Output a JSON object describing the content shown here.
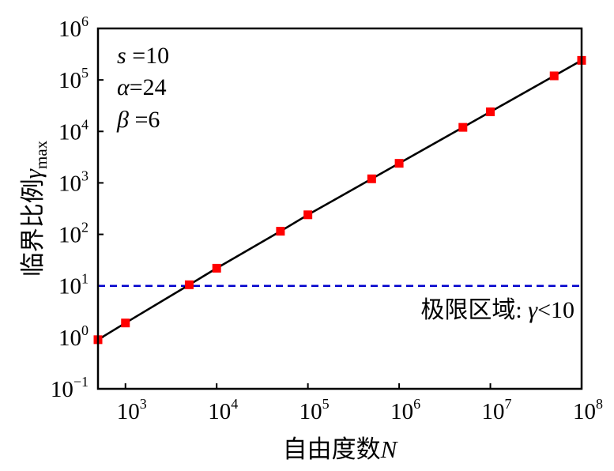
{
  "chart_data": {
    "type": "line",
    "x_scale": "log",
    "y_scale": "log",
    "xlim": [
      500,
      100000000
    ],
    "ylim": [
      0.1,
      1000000
    ],
    "xlabel": "自由度数",
    "xlabel_var": "N",
    "ylabel": "临界比例",
    "ylabel_var": "γ",
    "ylabel_sub": "max",
    "x_ticks": [
      {
        "base": "10",
        "exp": "3",
        "value": 1000
      },
      {
        "base": "10",
        "exp": "4",
        "value": 10000
      },
      {
        "base": "10",
        "exp": "5",
        "value": 100000
      },
      {
        "base": "10",
        "exp": "6",
        "value": 1000000
      },
      {
        "base": "10",
        "exp": "7",
        "value": 10000000
      },
      {
        "base": "10",
        "exp": "8",
        "value": 100000000
      }
    ],
    "y_ticks": [
      {
        "base": "10",
        "exp": "−1",
        "value": 0.1
      },
      {
        "base": "10",
        "exp": "0",
        "value": 1
      },
      {
        "base": "10",
        "exp": "1",
        "value": 10
      },
      {
        "base": "10",
        "exp": "2",
        "value": 100
      },
      {
        "base": "10",
        "exp": "3",
        "value": 1000
      },
      {
        "base": "10",
        "exp": "4",
        "value": 10000
      },
      {
        "base": "10",
        "exp": "5",
        "value": 100000
      },
      {
        "base": "10",
        "exp": "6",
        "value": 1000000
      }
    ],
    "series": [
      {
        "color": "#000000",
        "marker_color": "#ff0000",
        "x": [
          500,
          1000,
          5000,
          10000,
          50000,
          100000,
          500000,
          1000000,
          5000000,
          10000000,
          50000000,
          100000000
        ],
        "y": [
          0.9,
          1.9,
          10.5,
          22,
          115,
          240,
          1200,
          2400,
          12000,
          24000,
          120000,
          240000
        ]
      }
    ],
    "threshold": {
      "y": 10,
      "color": "#0000cc",
      "style": "dashed"
    },
    "annotations": {
      "region_prefix": "极限区域: ",
      "region_var": "γ",
      "region_suffix": "<10",
      "params": [
        {
          "sym": "s",
          "text": " =10"
        },
        {
          "sym": "α",
          "text": "=24"
        },
        {
          "sym": "β",
          "text": " =6"
        }
      ]
    },
    "grid": false,
    "legend": "none"
  }
}
